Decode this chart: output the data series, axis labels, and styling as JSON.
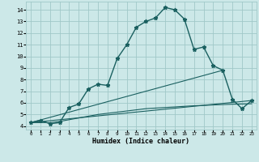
{
  "title": "",
  "xlabel": "Humidex (Indice chaleur)",
  "ylabel": "",
  "background_color": "#cce8e8",
  "grid_color": "#a0c8c8",
  "line_color": "#1a6060",
  "x_ticks": [
    0,
    1,
    2,
    3,
    4,
    5,
    6,
    7,
    8,
    9,
    10,
    11,
    12,
    13,
    14,
    15,
    16,
    17,
    18,
    19,
    20,
    21,
    22,
    23
  ],
  "y_ticks": [
    4,
    5,
    6,
    7,
    8,
    9,
    10,
    11,
    12,
    13,
    14
  ],
  "ylim": [
    3.7,
    14.7
  ],
  "xlim": [
    -0.5,
    23.5
  ],
  "series1_x": [
    0,
    1,
    2,
    3,
    4,
    5,
    6,
    7,
    8,
    9,
    10,
    11,
    12,
    13,
    14,
    15,
    16,
    17,
    18,
    19,
    20,
    21,
    22,
    23
  ],
  "series1_y": [
    4.3,
    4.5,
    4.2,
    4.3,
    5.6,
    5.9,
    7.2,
    7.6,
    7.5,
    9.8,
    11.0,
    12.5,
    13.0,
    13.3,
    14.2,
    14.0,
    13.2,
    10.6,
    10.8,
    9.2,
    8.8,
    6.3,
    5.5,
    6.2
  ],
  "series2_x": [
    0,
    20
  ],
  "series2_y": [
    4.3,
    8.8
  ],
  "series3_x": [
    0,
    23
  ],
  "series3_y": [
    4.3,
    6.2
  ],
  "series4_x": [
    0,
    1,
    2,
    3,
    4,
    5,
    6,
    7,
    8,
    9,
    10,
    11,
    12,
    13,
    14,
    15,
    16,
    17,
    18,
    19,
    20,
    21,
    22,
    23
  ],
  "series4_y": [
    4.3,
    4.3,
    4.3,
    4.4,
    4.55,
    4.7,
    4.85,
    5.0,
    5.1,
    5.2,
    5.3,
    5.4,
    5.5,
    5.55,
    5.6,
    5.65,
    5.7,
    5.75,
    5.78,
    5.82,
    5.85,
    5.88,
    5.9,
    5.92
  ],
  "marker": "*",
  "markersize": 3.5,
  "linewidth": 1.0
}
